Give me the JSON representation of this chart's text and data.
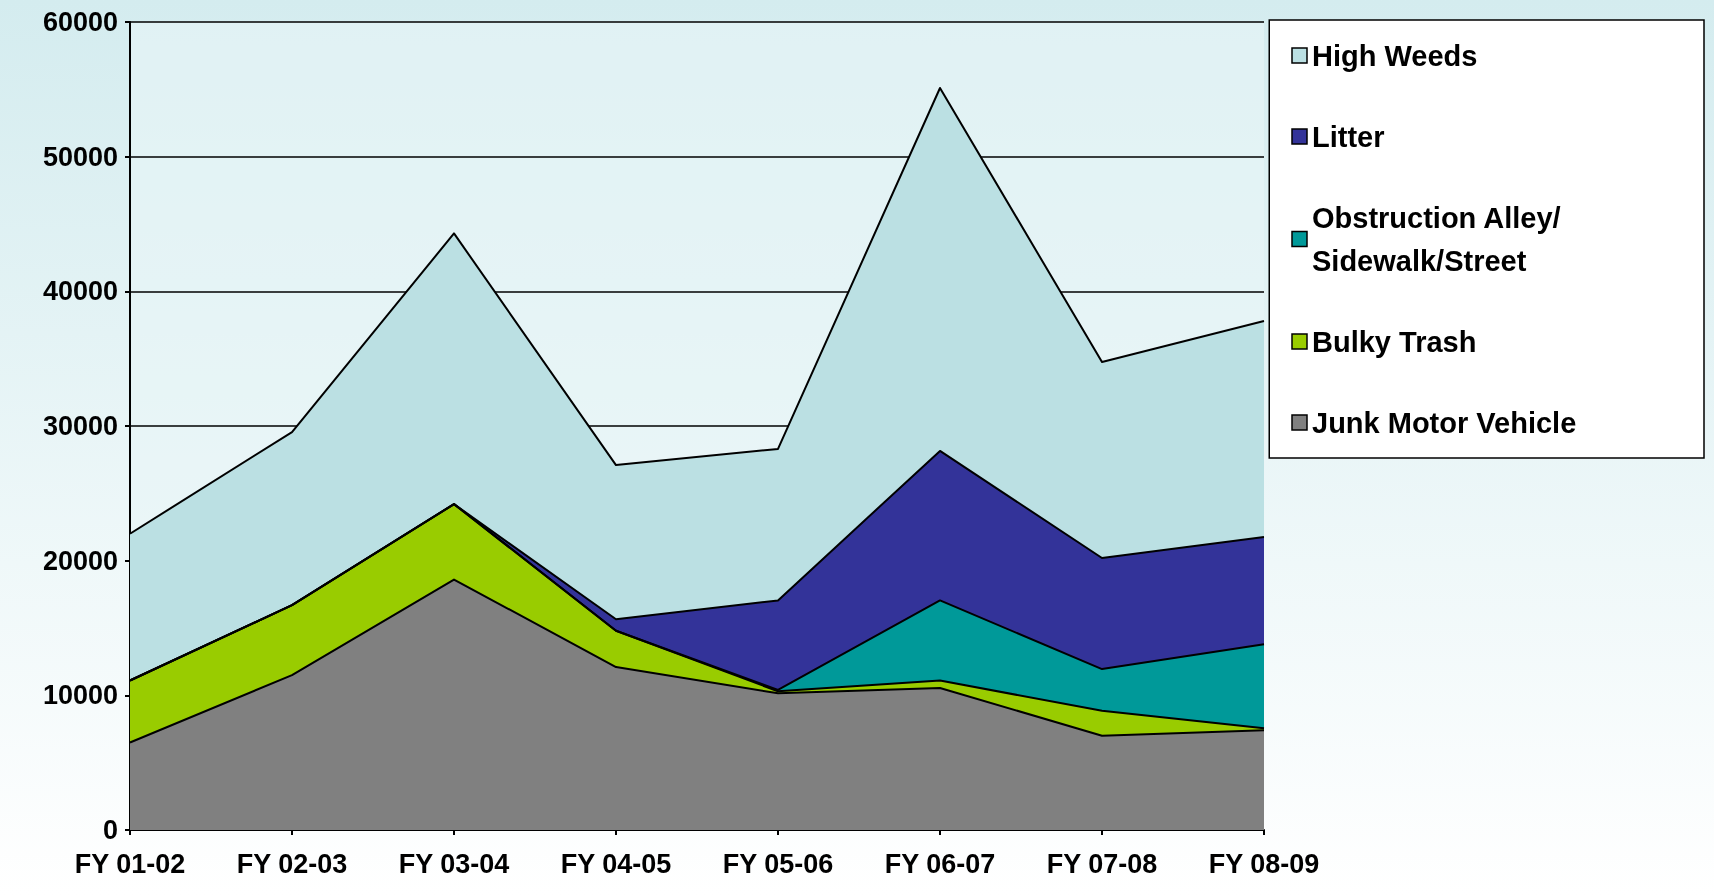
{
  "chart_data": {
    "type": "area",
    "stacked": true,
    "categories": [
      "FY 01-02",
      "FY 02-03",
      "FY 03-04",
      "FY 04-05",
      "FY 05-06",
      "FY 06-07",
      "FY 07-08",
      "FY 08-09"
    ],
    "series": [
      {
        "name": "Junk Motor Vehicle",
        "color": "#808080",
        "values": [
          6500,
          11500,
          18600,
          12100,
          10150,
          10550,
          7000,
          7400
        ]
      },
      {
        "name": "Bulky Trash",
        "color": "#99cc00",
        "values": [
          4600,
          5200,
          5600,
          2700,
          150,
          550,
          1850,
          150
        ]
      },
      {
        "name": "Obstruction Alley/Sidewalk/Street",
        "color": "#009999",
        "values": [
          0,
          0,
          0,
          0,
          100,
          5950,
          3100,
          6250
        ]
      },
      {
        "name": "Litter",
        "color": "#333399",
        "values": [
          0,
          0,
          0,
          850,
          6650,
          11100,
          8250,
          7950
        ]
      },
      {
        "name": "High Weeds",
        "color": "#bbe0e3",
        "values": [
          10900,
          12850,
          20100,
          11450,
          11250,
          26950,
          14550,
          16050
        ]
      }
    ],
    "ylim": [
      0,
      60000
    ],
    "yticks": [
      0,
      10000,
      20000,
      30000,
      40000,
      50000,
      60000
    ],
    "grid": "y",
    "legend": "top right"
  }
}
